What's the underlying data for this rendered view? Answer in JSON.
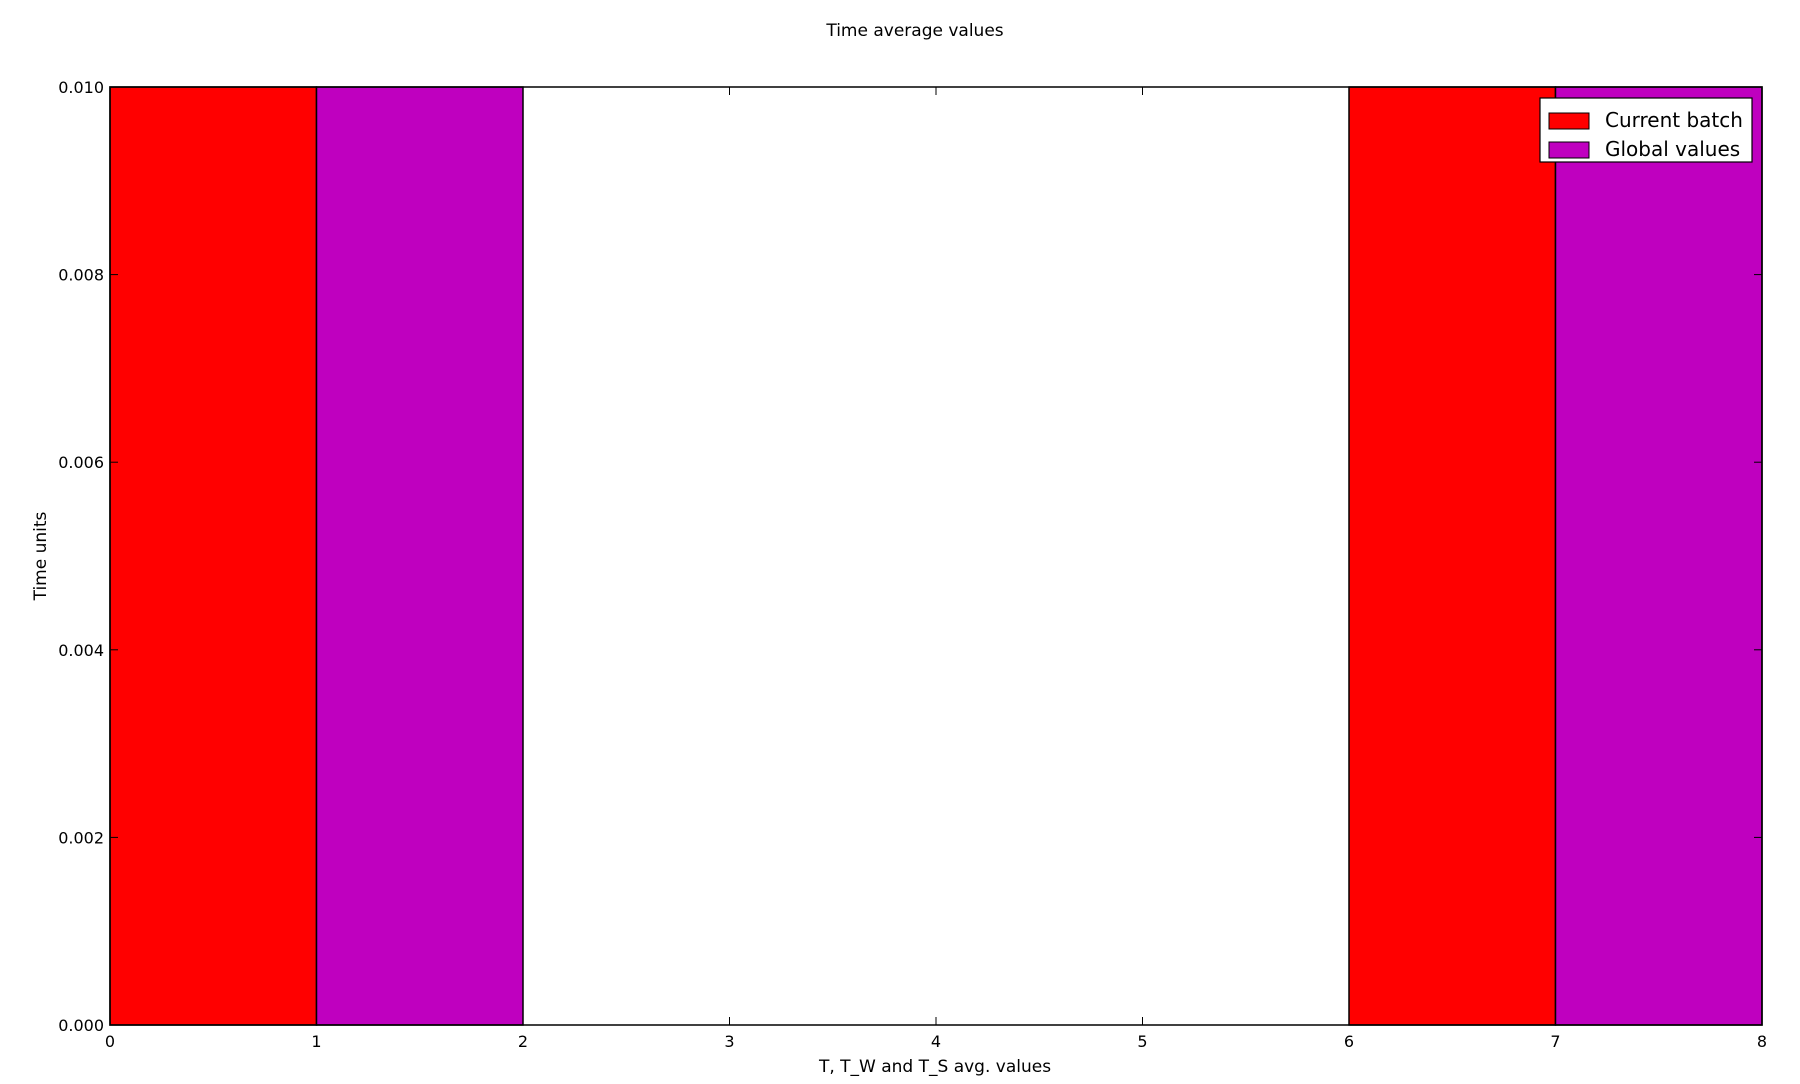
{
  "chart_data": {
    "type": "bar",
    "title": "Time average values",
    "xlabel": "T, T_W and T_S avg. values",
    "ylabel": "Time units",
    "xlim": [
      0,
      8
    ],
    "ylim": [
      0,
      0.01
    ],
    "x_ticks": [
      "0",
      "1",
      "2",
      "3",
      "4",
      "5",
      "6",
      "7",
      "8"
    ],
    "y_ticks": [
      "0.000",
      "0.002",
      "0.004",
      "0.006",
      "0.008",
      "0.010"
    ],
    "grid": false,
    "legend_position": "top-right",
    "series": [
      {
        "name": "Current batch",
        "color": "#ff0000",
        "bars": [
          {
            "x_start": 0,
            "x_end": 1,
            "value": 0.01
          },
          {
            "x_start": 6,
            "x_end": 7,
            "value": 0.01
          }
        ]
      },
      {
        "name": "Global values",
        "color": "#bf00bf",
        "bars": [
          {
            "x_start": 1,
            "x_end": 2,
            "value": 0.01
          },
          {
            "x_start": 7,
            "x_end": 8,
            "value": 0.01
          }
        ]
      }
    ]
  }
}
